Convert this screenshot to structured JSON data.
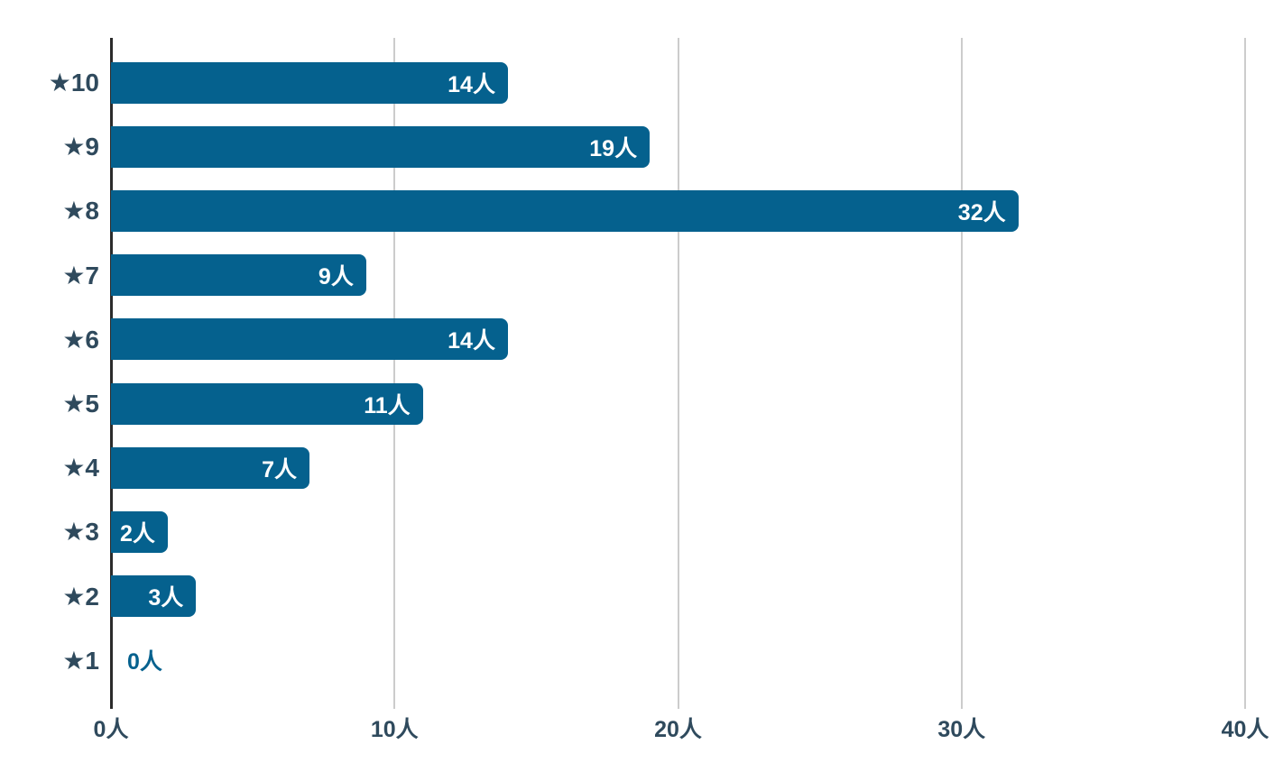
{
  "chart_data": {
    "type": "bar",
    "orientation": "horizontal",
    "title": "",
    "xlabel": "",
    "ylabel": "",
    "categories": [
      "★10",
      "★9",
      "★8",
      "★7",
      "★6",
      "★5",
      "★4",
      "★3",
      "★2",
      "★1"
    ],
    "values": [
      14,
      19,
      32,
      9,
      14,
      11,
      7,
      2,
      3,
      0
    ],
    "value_labels": [
      "14人",
      "19人",
      "32人",
      "9人",
      "14人",
      "11人",
      "7人",
      "2人",
      "3人",
      "0人"
    ],
    "unit": "人",
    "xlim": [
      0,
      40
    ],
    "x_tick_values": [
      0,
      10,
      20,
      30,
      40
    ],
    "x_tick_labels": [
      "0人",
      "10人",
      "20人",
      "30人",
      "40人"
    ],
    "grid": true,
    "legend": "none",
    "colors": {
      "bar": "#05618e",
      "category_text": "#2f4a5d",
      "tick_text": "#2f4a5d",
      "value_text_inside": "#ffffff",
      "value_text_zero": "#05618e",
      "axis_line": "#2b2b2b",
      "gridline": "#cccccc",
      "background": "#ffffff"
    }
  }
}
